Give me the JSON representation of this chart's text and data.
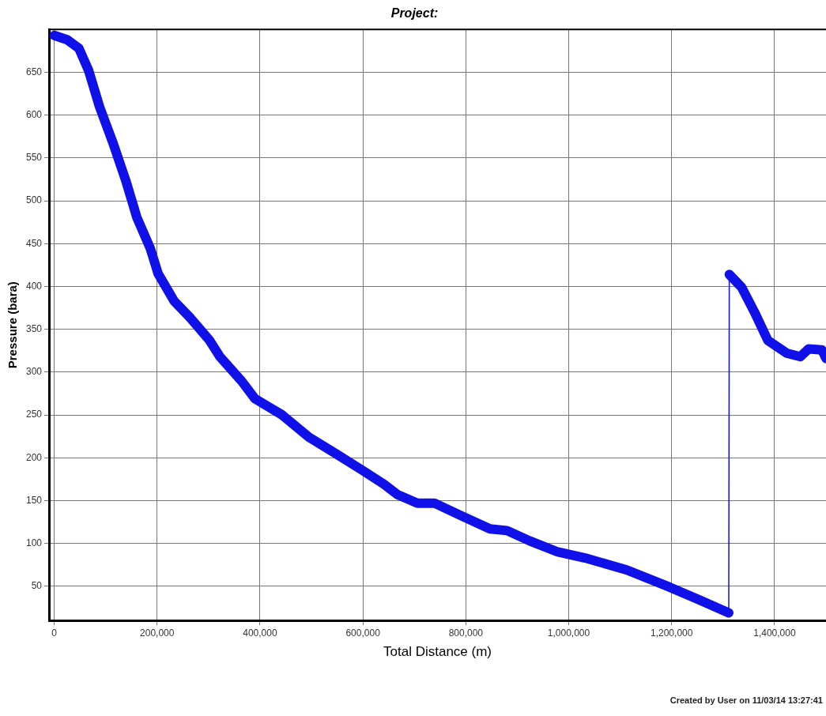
{
  "chart_data": {
    "type": "line",
    "title": "Project:",
    "xlabel": "Total Distance (m)",
    "ylabel": "Pressure (bara)",
    "annotations": [
      "Created by User on 11/03/14 13:27:41"
    ],
    "xlim": [
      -10000,
      1500000
    ],
    "xticks": [
      {
        "value": 0,
        "label": "0"
      },
      {
        "value": 200000,
        "label": "200,000"
      },
      {
        "value": 400000,
        "label": "400,000"
      },
      {
        "value": 600000,
        "label": "600,000"
      },
      {
        "value": 800000,
        "label": "800,000"
      },
      {
        "value": 1000000,
        "label": "1,000,000"
      },
      {
        "value": 1200000,
        "label": "1,200,000"
      },
      {
        "value": 1400000,
        "label": "1,400,000"
      }
    ],
    "ylim": [
      10,
      700
    ],
    "yticks": [
      50,
      100,
      150,
      200,
      250,
      300,
      350,
      400,
      450,
      500,
      550,
      600,
      650
    ],
    "grid": true,
    "legend": false,
    "marker": "none",
    "line_style": "solid",
    "series": [
      {
        "color": "#1010e8",
        "x": [
          0,
          25000,
          48000,
          67000,
          88000,
          114000,
          140000,
          161000,
          187000,
          202000,
          233000,
          265000,
          302000,
          322000,
          365000,
          390000,
          443000,
          495000,
          547000,
          600000,
          641000,
          667000,
          706000,
          739000,
          792000,
          847000,
          880000,
          924000,
          979000,
          1032000,
          1113000,
          1196000,
          1250000,
          1311000,
          1312000,
          1336000,
          1361000,
          1387000,
          1424000,
          1450000,
          1466000,
          1492000,
          1500000
        ],
        "values": [
          693,
          688,
          678,
          652,
          610,
          568,
          522,
          480,
          444,
          415,
          383,
          363,
          337,
          318,
          289,
          269,
          250,
          224,
          205,
          185,
          169,
          157,
          147,
          147,
          132,
          117,
          115,
          103,
          90,
          83,
          69,
          49,
          35,
          19,
          414,
          399,
          370,
          337,
          322,
          318,
          327,
          326,
          316
        ]
      }
    ]
  }
}
